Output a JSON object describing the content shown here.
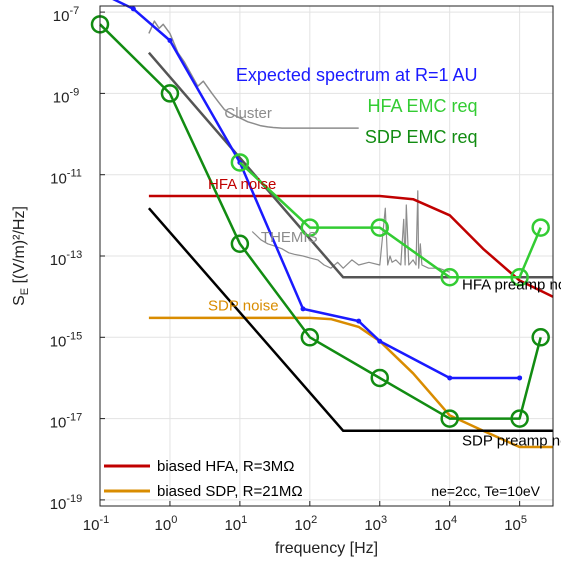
{
  "chart_data": {
    "type": "line",
    "xlabel": "frequency [Hz]",
    "ylabel_main": "S",
    "ylabel_sub": "E",
    "ylabel_rest": " [(V/m)²/Hz]",
    "x_scale": "log",
    "y_scale": "log",
    "xlim": [
      0.1,
      300000
    ],
    "ylim": [
      1e-19,
      1e-07
    ],
    "x_ticks": [
      {
        "value": 0.1,
        "label": "10",
        "exp": "-1"
      },
      {
        "value": 1,
        "label": "10",
        "exp": "0"
      },
      {
        "value": 10,
        "label": "10",
        "exp": "1"
      },
      {
        "value": 100,
        "label": "10",
        "exp": "2"
      },
      {
        "value": 1000,
        "label": "10",
        "exp": "3"
      },
      {
        "value": 10000,
        "label": "10",
        "exp": "4"
      },
      {
        "value": 100000,
        "label": "10",
        "exp": "5"
      }
    ],
    "y_ticks": [
      {
        "value": 1e-19,
        "label": "10",
        "exp": "-19"
      },
      {
        "value": 1e-17,
        "label": "10",
        "exp": "-17"
      },
      {
        "value": 1e-15,
        "label": "10",
        "exp": "-15"
      },
      {
        "value": 1e-13,
        "label": "10",
        "exp": "-13"
      },
      {
        "value": 1e-11,
        "label": "10",
        "exp": "-11"
      },
      {
        "value": 1e-09,
        "label": "10",
        "exp": "-9"
      },
      {
        "value": 1e-07,
        "label": "10",
        "exp": "-7"
      }
    ],
    "grid": true,
    "series": [
      {
        "key": "cluster",
        "name": "Cluster",
        "color": "#8c8c8c",
        "width": 1.5,
        "x": [
          0.5,
          0.6,
          0.7,
          0.8,
          1,
          1.3,
          1.6,
          2,
          2.5,
          3,
          4,
          5,
          6,
          8,
          10,
          13,
          16,
          20,
          25,
          30,
          40,
          60,
          100,
          200,
          500
        ],
        "y": [
          3e-08,
          6e-08,
          4e-08,
          5e-08,
          3e-08,
          1e-08,
          6e-09,
          3e-09,
          1.5e-09,
          2e-09,
          1e-09,
          6e-10,
          4e-10,
          3e-10,
          2.5e-10,
          2e-10,
          1.8e-10,
          1.6e-10,
          1.5e-10,
          1.45e-10,
          1.4e-10,
          1.4e-10,
          1.4e-10,
          1.4e-10,
          1.4e-10
        ]
      },
      {
        "key": "themis",
        "name": "THEMIS",
        "color": "#8c8c8c",
        "width": 1.2,
        "x": [
          15,
          20,
          25,
          30,
          40,
          50,
          60,
          80,
          100,
          130,
          160,
          200,
          250,
          300,
          400,
          500,
          700,
          1000,
          1200,
          1300,
          1400,
          1500,
          1700,
          2000,
          2200,
          2300,
          2400,
          2600,
          3000,
          3300,
          3500,
          3600,
          3800,
          4000,
          5000,
          7000,
          10000
        ],
        "y": [
          4e-13,
          2.5e-13,
          2e-13,
          1.8e-13,
          1.5e-13,
          1.2e-13,
          1.1e-13,
          1e-13,
          9e-14,
          8e-14,
          6e-14,
          5e-14,
          7e-14,
          5e-14,
          8e-14,
          6e-14,
          7e-14,
          6e-14,
          1.5e-12,
          6e-14,
          1e-13,
          7e-14,
          8e-14,
          6e-14,
          8e-13,
          6e-14,
          1.8e-12,
          6e-14,
          8e-14,
          6e-14,
          4e-12,
          5e-14,
          2e-13,
          6e-14,
          5e-14,
          5e-14,
          4e-14
        ]
      },
      {
        "key": "hfa_noise",
        "name": "HFA noise",
        "color": "#c00000",
        "width": 2.5,
        "x": [
          0.5,
          1000,
          3000,
          10000,
          30000,
          100000,
          300000
        ],
        "y": [
          3e-12,
          3e-12,
          2.5e-12,
          1e-12,
          1.5e-13,
          2.5e-14,
          1e-14
        ]
      },
      {
        "key": "sdp_noise",
        "name": "SDP noise",
        "color": "#d98c00",
        "width": 2.5,
        "x": [
          0.5,
          100,
          200,
          500,
          1000,
          3000,
          10000,
          30000,
          100000,
          300000
        ],
        "y": [
          3e-15,
          3e-15,
          2.8e-15,
          1.8e-15,
          8e-16,
          1.3e-16,
          1.2e-17,
          5e-18,
          2e-18,
          2e-18
        ]
      },
      {
        "key": "hfa_preamp",
        "name": "HFA preamp noise",
        "color": "#555555",
        "width": 2.5,
        "x": [
          0.5,
          300,
          300000
        ],
        "y": [
          1e-08,
          3e-14,
          3e-14
        ]
      },
      {
        "key": "sdp_preamp",
        "name": "SDP preamp noise",
        "color": "#000000",
        "width": 2.5,
        "x": [
          0.5,
          300,
          300000
        ],
        "y": [
          1.5e-12,
          5e-18,
          5e-18
        ]
      },
      {
        "key": "expected",
        "name": "Expected spectrum at R=1 AU",
        "color": "#1a1aff",
        "width": 2.5,
        "x": [
          0.1,
          0.3,
          1,
          10,
          80,
          500,
          1000,
          10000,
          100000
        ],
        "y": [
          3e-07,
          1.2e-07,
          2e-08,
          2e-11,
          5e-15,
          2.5e-15,
          8e-16,
          1e-16,
          1e-16
        ],
        "markers": "dot"
      },
      {
        "key": "hfa_emc",
        "name": "HFA EMC req",
        "color": "#33cc33",
        "width": 2.5,
        "x": [
          10,
          100,
          1000,
          10000,
          100000,
          200000
        ],
        "y": [
          2e-11,
          5e-13,
          5e-13,
          3e-14,
          3e-14,
          5e-13
        ],
        "markers": "circle"
      },
      {
        "key": "sdp_emc",
        "name": "SDP EMC req",
        "color": "#128c12",
        "width": 2.5,
        "x": [
          0.1,
          1,
          10,
          100,
          1000,
          10000,
          100000,
          200000
        ],
        "y": [
          5e-08,
          1e-09,
          2e-13,
          1e-15,
          1e-16,
          1e-17,
          1e-17,
          1e-15
        ],
        "markers": "circle"
      }
    ],
    "series_labels": [
      {
        "text": "Cluster",
        "color": "#8c8c8c",
        "at_x": 6,
        "at_y": 2.5e-10,
        "size": 15
      },
      {
        "text": "THEMIS",
        "color": "#8c8c8c",
        "at_x": 20,
        "at_y": 2.2e-13,
        "size": 15
      },
      {
        "text": "HFA noise",
        "color": "#c00000",
        "at_x": 3.5,
        "at_y": 4.5e-12,
        "size": 15
      },
      {
        "text": "SDP noise",
        "color": "#d98c00",
        "at_x": 3.5,
        "at_y": 4.5e-15,
        "size": 15
      },
      {
        "text": "HFA preamp noise",
        "color": "#000000",
        "at_x": 15000,
        "at_y": 1.5e-14,
        "size": 15
      },
      {
        "text": "SDP preamp noise",
        "color": "#000000",
        "at_x": 15000,
        "at_y": 2.2e-18,
        "size": 15
      },
      {
        "text": "Expected spectrum at R=1 AU",
        "color": "#1a1aff",
        "at_x": 25000,
        "at_y": 2e-09,
        "size": 18
      },
      {
        "text": "HFA EMC req",
        "color": "#33cc33",
        "at_x": 25000,
        "at_y": 3.5e-10,
        "size": 18
      },
      {
        "text": "SDP EMC req",
        "color": "#128c12",
        "at_x": 25000,
        "at_y": 6e-11,
        "size": 18
      }
    ],
    "legend": {
      "placement": "bottom-left",
      "items": [
        {
          "label": "biased HFA, R=3MΩ",
          "color": "#c00000"
        },
        {
          "label": "biased SDP, R=21MΩ",
          "color": "#d98c00"
        }
      ]
    },
    "annotation": "ne=2cc, Te=10eV"
  }
}
